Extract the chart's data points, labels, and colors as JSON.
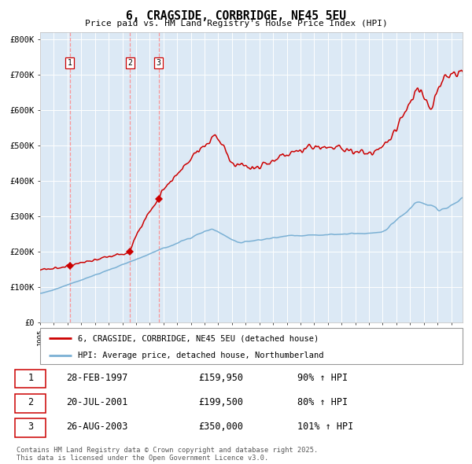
{
  "title": "6, CRAGSIDE, CORBRIDGE, NE45 5EU",
  "subtitle": "Price paid vs. HM Land Registry's House Price Index (HPI)",
  "bg_color": "#dce9f5",
  "plot_bg_color": "#dce9f5",
  "red_line_color": "#cc0000",
  "blue_line_color": "#7ab0d4",
  "marker_color": "#cc0000",
  "dashed_line_color": "#ff8888",
  "ylim": [
    0,
    820000
  ],
  "yticks": [
    0,
    100000,
    200000,
    300000,
    400000,
    500000,
    600000,
    700000,
    800000
  ],
  "ytick_labels": [
    "£0",
    "£100K",
    "£200K",
    "£300K",
    "£400K",
    "£500K",
    "£600K",
    "£700K",
    "£800K"
  ],
  "sale_dates_decimal": [
    1997.163,
    2001.554,
    2003.651
  ],
  "sale_prices": [
    159950,
    199500,
    350000
  ],
  "sale_labels": [
    "1",
    "2",
    "3"
  ],
  "legend_entries": [
    "6, CRAGSIDE, CORBRIDGE, NE45 5EU (detached house)",
    "HPI: Average price, detached house, Northumberland"
  ],
  "table_data": [
    [
      "1",
      "28-FEB-1997",
      "£159,950",
      "90% ↑ HPI"
    ],
    [
      "2",
      "20-JUL-2001",
      "£199,500",
      "80% ↑ HPI"
    ],
    [
      "3",
      "26-AUG-2003",
      "£350,000",
      "101% ↑ HPI"
    ]
  ],
  "footer": "Contains HM Land Registry data © Crown copyright and database right 2025.\nThis data is licensed under the Open Government Licence v3.0.",
  "xstart": 1995.0,
  "xend": 2025.83
}
